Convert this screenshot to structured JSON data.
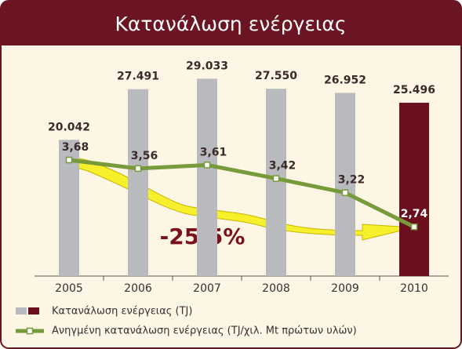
{
  "chart_data": {
    "type": "bar-line",
    "title": "Κατανάλωση ενέργειας",
    "categories": [
      "2005",
      "2006",
      "2007",
      "2008",
      "2009",
      "2010"
    ],
    "series": [
      {
        "name": "Κατανάλωση ενέργειας (TJ)",
        "type": "bar",
        "colors": [
          "#b9babe",
          "#b9babe",
          "#b9babe",
          "#b9babe",
          "#b9babe",
          "#6b0f1f"
        ],
        "values": [
          20042,
          27491,
          29033,
          27550,
          26952,
          25496
        ],
        "value_labels": [
          "20.042",
          "27.491",
          "29.033",
          "27.550",
          "26.952",
          "25.496"
        ]
      },
      {
        "name": "Ανηγμένη κατανάλωση ενέργειας (TJ/χιλ. Mt πρώτων υλών)",
        "type": "line",
        "axis": "y2",
        "color": "#779a3a",
        "values": [
          3.68,
          3.56,
          3.61,
          3.42,
          3.22,
          2.74
        ],
        "value_labels": [
          "3,68",
          "3,56",
          "3,61",
          "3,42",
          "3,22",
          "2,74"
        ]
      }
    ],
    "ylim": [
      0,
      30000
    ],
    "y2lim": [
      2.5,
      4
    ],
    "annotations": [
      "-25,5%"
    ]
  }
}
